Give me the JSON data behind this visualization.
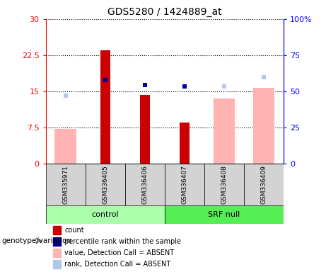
{
  "title": "GDS5280 / 1424889_at",
  "samples": [
    "GSM335971",
    "GSM336405",
    "GSM336406",
    "GSM336407",
    "GSM336408",
    "GSM336409"
  ],
  "groups": [
    "control",
    "control",
    "control",
    "SRF null",
    "SRF null",
    "SRF null"
  ],
  "count_values": [
    null,
    23.5,
    14.3,
    8.5,
    null,
    null
  ],
  "percentile_rank_pct": [
    null,
    58.0,
    54.5,
    53.5,
    null,
    null
  ],
  "absent_value": [
    7.3,
    null,
    null,
    null,
    13.5,
    15.8
  ],
  "absent_rank_pct": [
    47.0,
    null,
    null,
    null,
    53.5,
    60.0
  ],
  "ylim_left": [
    0,
    30
  ],
  "ylim_right": [
    0,
    100
  ],
  "yticks_left": [
    0,
    7.5,
    15,
    22.5,
    30
  ],
  "ytick_labels_left": [
    "0",
    "7.5",
    "15",
    "22.5",
    "30"
  ],
  "ytick_labels_right": [
    "0",
    "25",
    "50",
    "75",
    "100%"
  ],
  "count_color": "#cc0000",
  "percentile_color": "#000099",
  "absent_value_color": "#ffb3b3",
  "absent_rank_color": "#b3c8e8",
  "control_color": "#aaffaa",
  "srfnull_color": "#55ee55",
  "legend_items": [
    {
      "label": "count",
      "color": "#cc0000",
      "marker": "s"
    },
    {
      "label": "percentile rank within the sample",
      "color": "#000099",
      "marker": "s"
    },
    {
      "label": "value, Detection Call = ABSENT",
      "color": "#ffb3b3",
      "marker": "s"
    },
    {
      "label": "rank, Detection Call = ABSENT",
      "color": "#b3c8e8",
      "marker": "s"
    }
  ]
}
